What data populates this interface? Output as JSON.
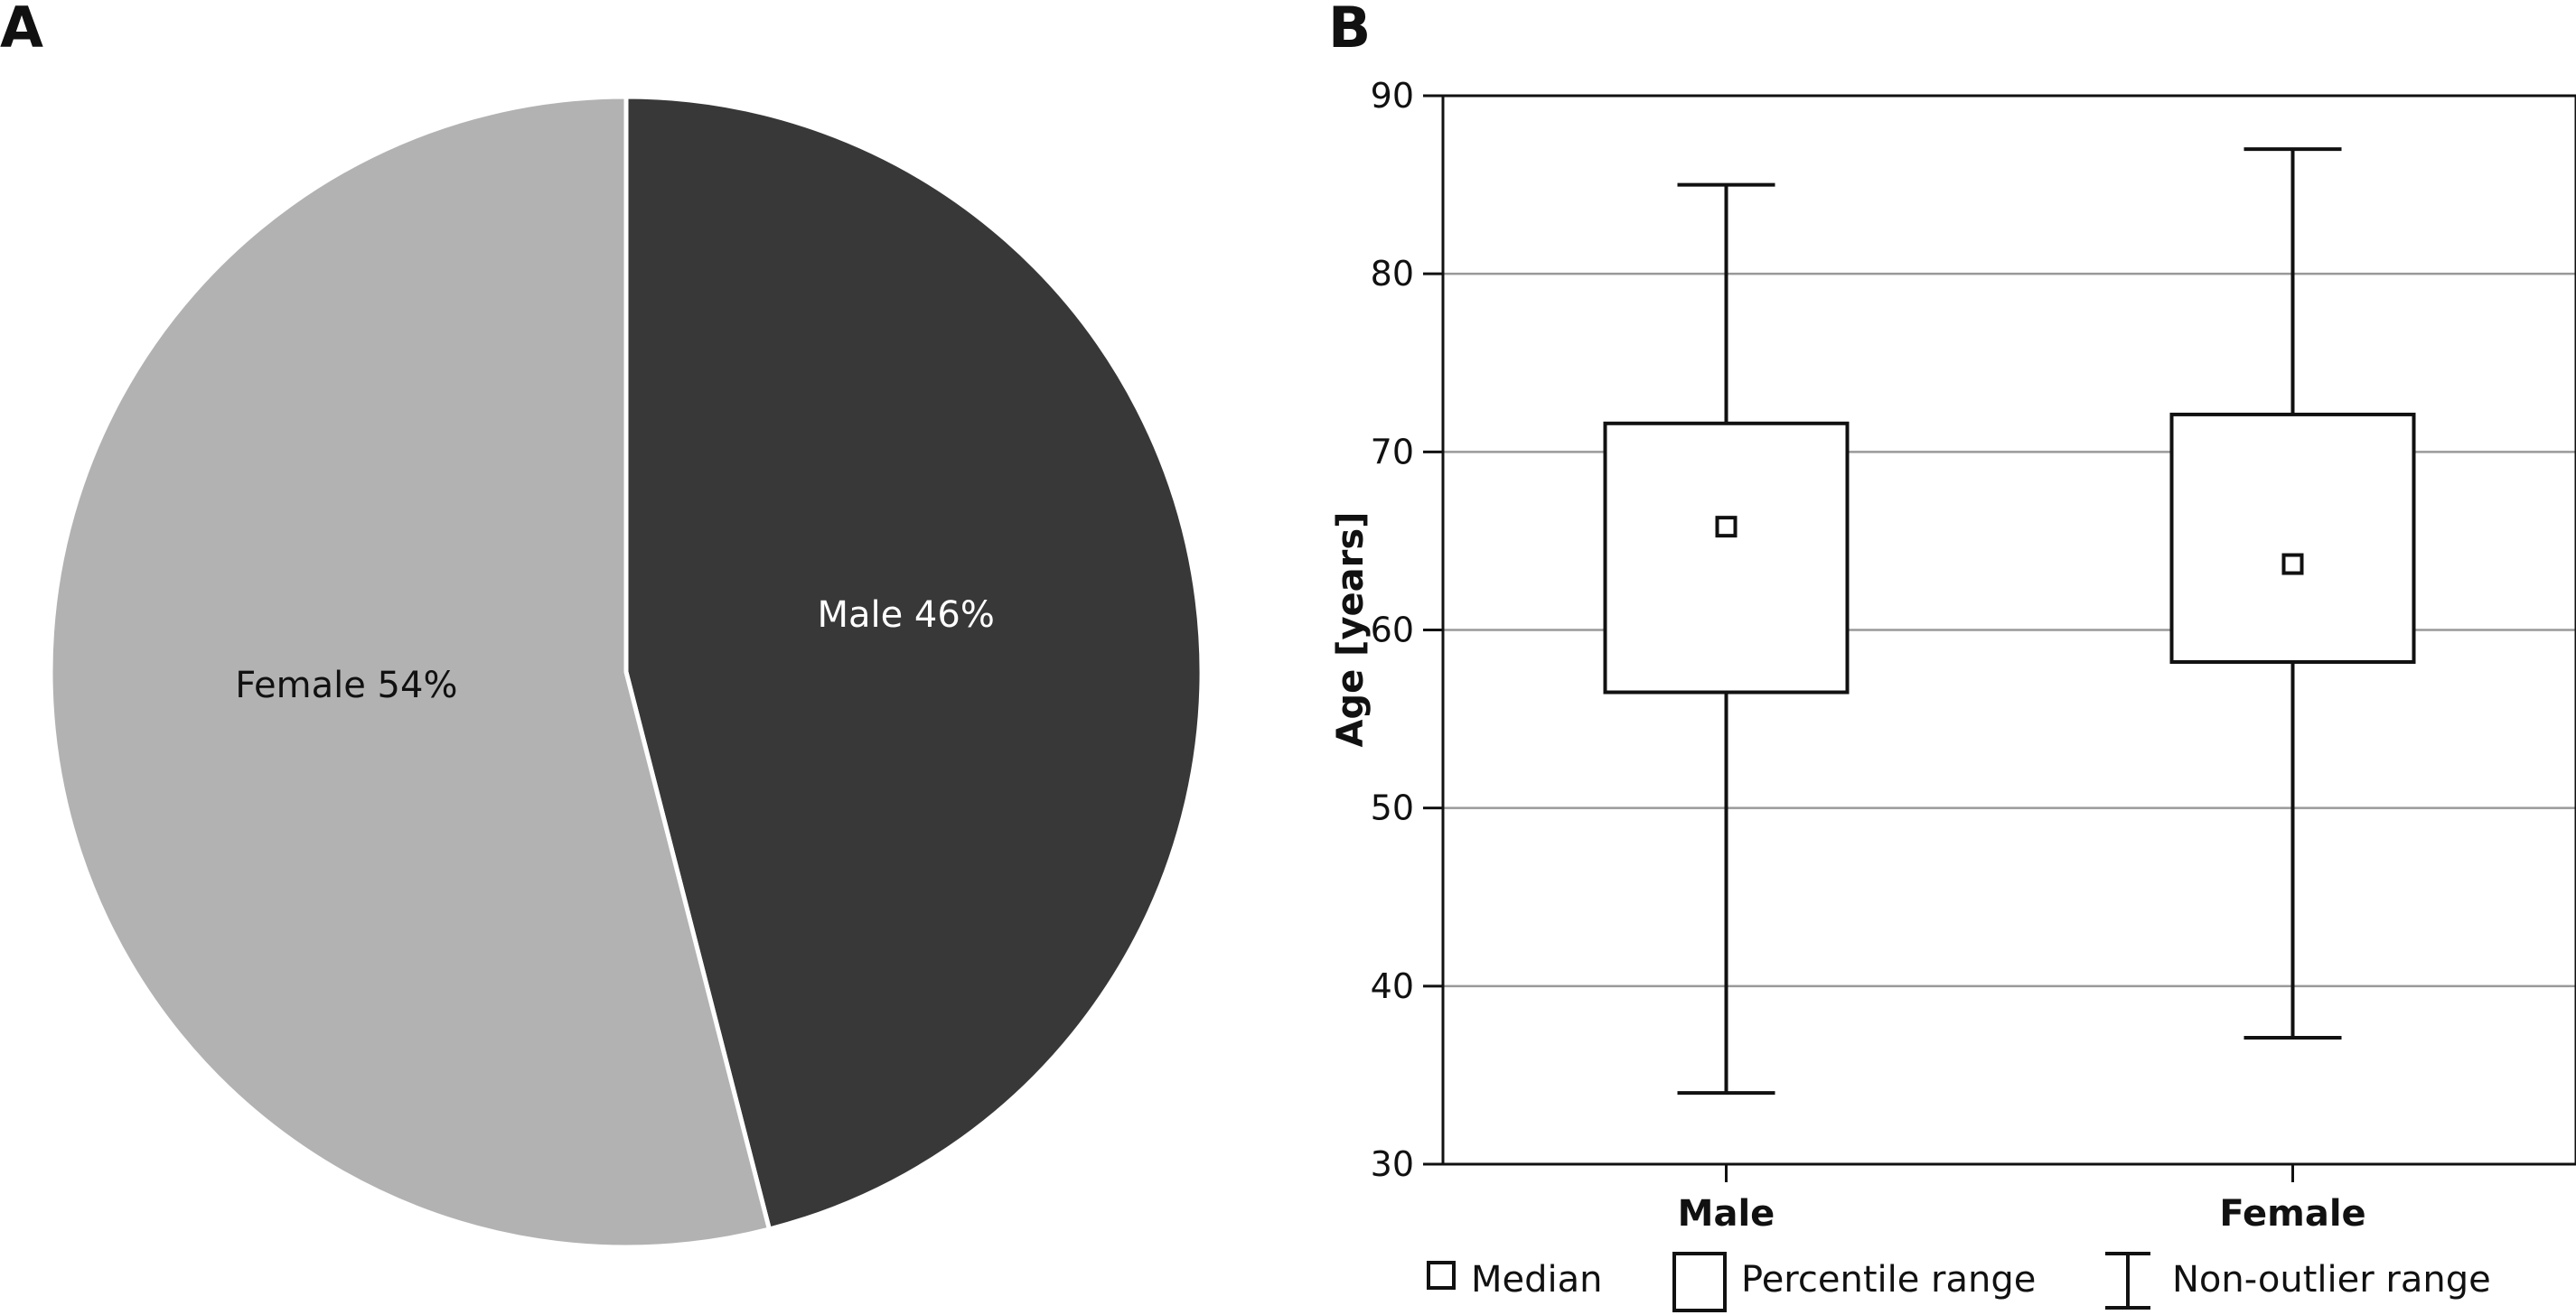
{
  "panels": {
    "a_letter": "A",
    "b_letter": "B"
  },
  "chart_data": [
    {
      "type": "pie",
      "panel": "A",
      "slices": [
        {
          "name": "Male",
          "value": 46,
          "label": "Male 46%",
          "color": "#383838",
          "label_color": "#ffffff"
        },
        {
          "name": "Female",
          "value": 54,
          "label": "Female 54%",
          "color": "#b2b2b2",
          "label_color": "#111111"
        }
      ],
      "start": "12 o'clock",
      "direction": "clockwise"
    },
    {
      "type": "box",
      "panel": "B",
      "ylabel": "Age [years]",
      "ylim": [
        30,
        90
      ],
      "yticks": [
        30,
        40,
        50,
        60,
        70,
        80,
        90
      ],
      "grid": true,
      "categories": [
        "Male",
        "Female"
      ],
      "series": [
        {
          "name": "Male",
          "min": 34,
          "q1": 56.5,
          "median": 65.8,
          "q3": 71.6,
          "max": 85
        },
        {
          "name": "Female",
          "min": 37.1,
          "q1": 58.2,
          "median": 63.7,
          "q3": 72.1,
          "max": 87
        }
      ],
      "legend": {
        "placement": "bottom",
        "items": [
          {
            "label": "Median",
            "symbol": "median"
          },
          {
            "label": "Percentile range",
            "symbol": "box"
          },
          {
            "label": "Non-outlier range",
            "symbol": "whisker"
          }
        ]
      }
    }
  ]
}
